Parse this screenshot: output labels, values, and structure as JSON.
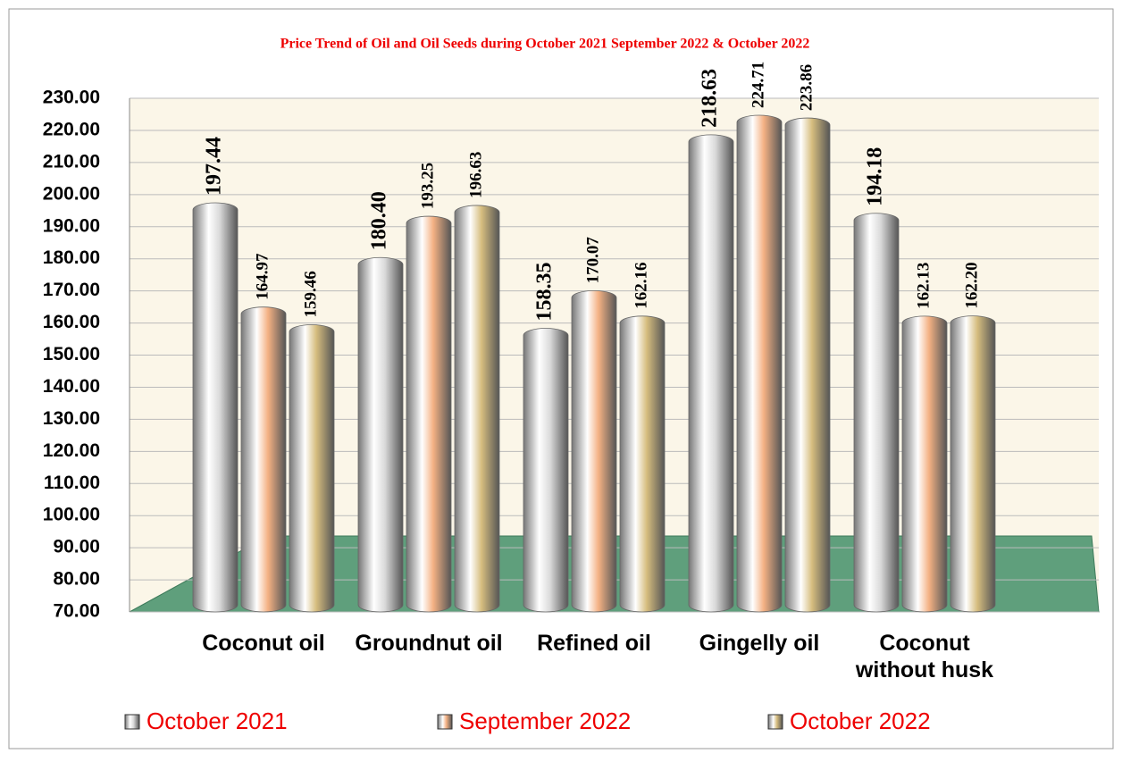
{
  "chart_data": {
    "type": "bar",
    "title": "Price Trend of Oil and Oil Seeds during  October 2021  September 2022  &  October 2022",
    "categories": [
      "Coconut oil",
      "Groundnut oil",
      "Refined oil",
      "Gingelly oil",
      "Coconut without husk"
    ],
    "series": [
      {
        "name": "October 2021",
        "color": "#d9d9d9",
        "values": [
          197.44,
          180.4,
          158.35,
          218.63,
          194.18
        ],
        "value_labels": [
          "197.44",
          "180.40",
          "158.35",
          "218.63",
          "194.18"
        ]
      },
      {
        "name": "September 2022",
        "color": "#f4b183",
        "values": [
          164.97,
          193.25,
          170.07,
          224.71,
          162.13
        ],
        "value_labels": [
          "164.97",
          "193.25",
          "170.07",
          "224.71",
          "162.13"
        ]
      },
      {
        "name": "October 2022",
        "color": "#d6bd7e",
        "values": [
          159.46,
          196.63,
          162.16,
          223.86,
          162.2
        ],
        "value_labels": [
          "159.46",
          "196.63",
          "162.16",
          "223.86",
          "162.20"
        ]
      }
    ],
    "ylim": [
      70,
      230
    ],
    "yticks": [
      {
        "value": 70,
        "label": "70.00"
      },
      {
        "value": 80,
        "label": "80.00"
      },
      {
        "value": 90,
        "label": "90.00"
      },
      {
        "value": 100,
        "label": "100.00"
      },
      {
        "value": 110,
        "label": "110.00"
      },
      {
        "value": 120,
        "label": "120.00"
      },
      {
        "value": 130,
        "label": "130.00"
      },
      {
        "value": 140,
        "label": "140.00"
      },
      {
        "value": 150,
        "label": "150.00"
      },
      {
        "value": 160,
        "label": "160.00"
      },
      {
        "value": 170,
        "label": "170.00"
      },
      {
        "value": 180,
        "label": "180.00"
      },
      {
        "value": 190,
        "label": "190.00"
      },
      {
        "value": 200,
        "label": "200.00"
      },
      {
        "value": 210,
        "label": "210.00"
      },
      {
        "value": 220,
        "label": "220.00"
      },
      {
        "value": 230,
        "label": "230.00"
      }
    ],
    "grid": true
  }
}
